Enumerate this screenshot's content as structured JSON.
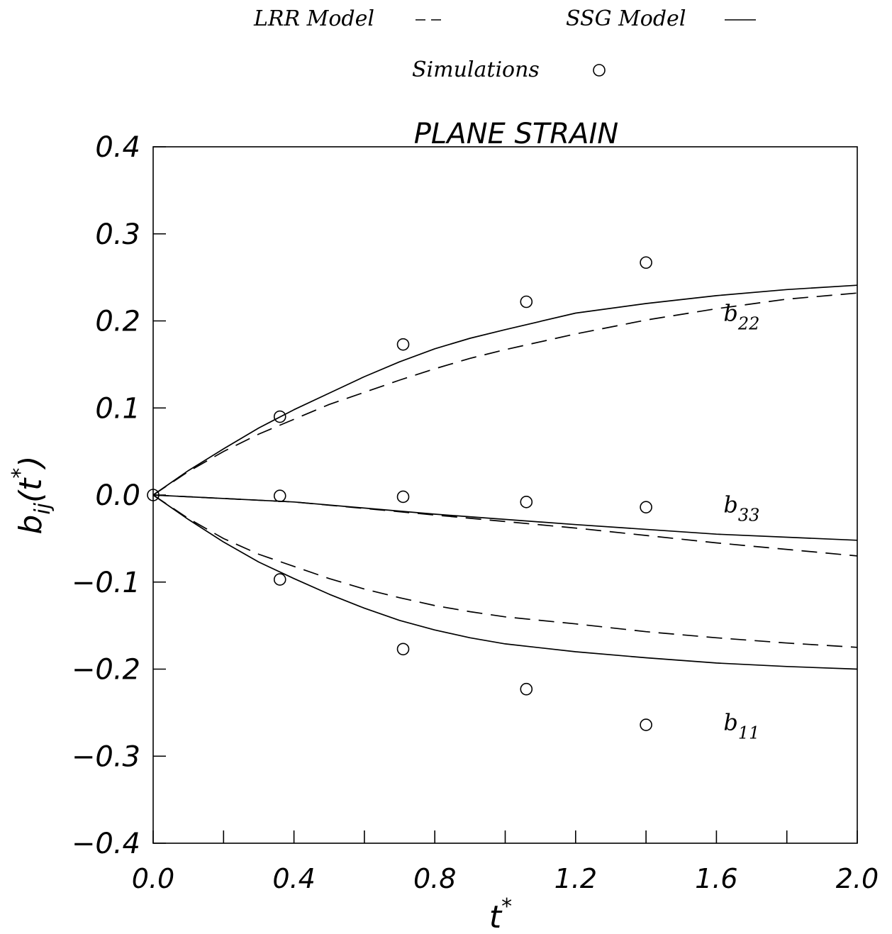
{
  "chart_data": {
    "type": "line",
    "title": "PLANE STRAIN",
    "xlabel": "t",
    "xlabel_sup": "*",
    "ylabel_main": "b",
    "ylabel_sub": "ij",
    "ylabel_paren_open": "(t",
    "ylabel_sup": "*",
    "ylabel_paren_close": ")",
    "xlim": [
      0.0,
      2.0
    ],
    "ylim": [
      -0.4,
      0.4
    ],
    "x_ticks": [
      0.0,
      0.4,
      0.8,
      1.2,
      1.6,
      2.0
    ],
    "x_tick_labels": [
      "0.0",
      "0.4",
      "0.8",
      "1.2",
      "1.6",
      "2.0"
    ],
    "x_minor_ticks": [
      0.2,
      0.6,
      1.0,
      1.4,
      1.8
    ],
    "y_ticks": [
      -0.4,
      -0.3,
      -0.2,
      -0.1,
      0.0,
      0.1,
      0.2,
      0.3,
      0.4
    ],
    "y_tick_labels": [
      "−0.4",
      "−0.3",
      "−0.2",
      "−0.1",
      "0.0",
      "0.1",
      "0.2",
      "0.3",
      "0.4"
    ],
    "grid": false,
    "legend": {
      "placement": "top",
      "lrr_label": "LRR  Model",
      "ssg_label": "SSG  Model",
      "sim_label": "Simulations"
    },
    "annotations": [
      {
        "main": "b",
        "sub": "22",
        "x": 1.62,
        "y": 0.2
      },
      {
        "main": "b",
        "sub": "33",
        "x": 1.62,
        "y": -0.02
      },
      {
        "main": "b",
        "sub": "11",
        "x": 1.62,
        "y": -0.27
      }
    ],
    "series": [
      {
        "style": "solid",
        "color": "#000000",
        "x": [
          0,
          0.1,
          0.2,
          0.3,
          0.4,
          0.5,
          0.6,
          0.7,
          0.8,
          0.9,
          1.0,
          1.2,
          1.4,
          1.6,
          1.8,
          2.0
        ],
        "values": [
          0,
          0.028,
          0.053,
          0.077,
          0.098,
          0.117,
          0.136,
          0.153,
          0.168,
          0.18,
          0.19,
          0.209,
          0.22,
          0.229,
          0.236,
          0.241
        ]
      },
      {
        "style": "dashed",
        "color": "#000000",
        "x": [
          0,
          0.1,
          0.2,
          0.3,
          0.4,
          0.5,
          0.6,
          0.7,
          0.8,
          0.9,
          1.0,
          1.2,
          1.4,
          1.6,
          1.8,
          2.0
        ],
        "values": [
          0,
          0.027,
          0.05,
          0.07,
          0.087,
          0.104,
          0.118,
          0.132,
          0.145,
          0.157,
          0.167,
          0.185,
          0.201,
          0.214,
          0.225,
          0.232
        ]
      },
      {
        "style": "solid",
        "color": "#000000",
        "x": [
          0,
          0.4,
          0.8,
          1.2,
          1.6,
          2.0
        ],
        "values": [
          0,
          -0.008,
          -0.022,
          -0.034,
          -0.045,
          -0.052
        ]
      },
      {
        "style": "dashed",
        "color": "#000000",
        "x": [
          0,
          0.4,
          0.8,
          1.2,
          1.6,
          2.0
        ],
        "values": [
          0,
          -0.008,
          -0.023,
          -0.038,
          -0.055,
          -0.07
        ]
      },
      {
        "style": "solid",
        "color": "#000000",
        "x": [
          0,
          0.1,
          0.2,
          0.3,
          0.4,
          0.5,
          0.6,
          0.7,
          0.8,
          0.9,
          1.0,
          1.2,
          1.4,
          1.6,
          1.8,
          2.0
        ],
        "values": [
          0,
          -0.028,
          -0.054,
          -0.077,
          -0.096,
          -0.114,
          -0.13,
          -0.144,
          -0.155,
          -0.164,
          -0.171,
          -0.18,
          -0.187,
          -0.193,
          -0.197,
          -0.2
        ]
      },
      {
        "style": "dashed",
        "color": "#000000",
        "x": [
          0,
          0.1,
          0.2,
          0.3,
          0.4,
          0.5,
          0.6,
          0.7,
          0.8,
          0.9,
          1.0,
          1.2,
          1.4,
          1.6,
          1.8,
          2.0
        ],
        "values": [
          0,
          -0.027,
          -0.05,
          -0.068,
          -0.082,
          -0.096,
          -0.108,
          -0.118,
          -0.127,
          -0.134,
          -0.14,
          -0.148,
          -0.157,
          -0.164,
          -0.17,
          -0.175
        ]
      }
    ],
    "simulations": {
      "style": "circle",
      "points": [
        {
          "x": 0.0,
          "y": 0.0
        },
        {
          "x": 0.36,
          "y": 0.09
        },
        {
          "x": 0.71,
          "y": 0.173
        },
        {
          "x": 1.06,
          "y": 0.222
        },
        {
          "x": 1.4,
          "y": 0.267
        },
        {
          "x": 0.36,
          "y": -0.001
        },
        {
          "x": 0.71,
          "y": -0.002
        },
        {
          "x": 1.06,
          "y": -0.008
        },
        {
          "x": 1.4,
          "y": -0.014
        },
        {
          "x": 0.36,
          "y": -0.097
        },
        {
          "x": 0.71,
          "y": -0.177
        },
        {
          "x": 1.06,
          "y": -0.223
        },
        {
          "x": 1.4,
          "y": -0.264
        }
      ]
    }
  }
}
